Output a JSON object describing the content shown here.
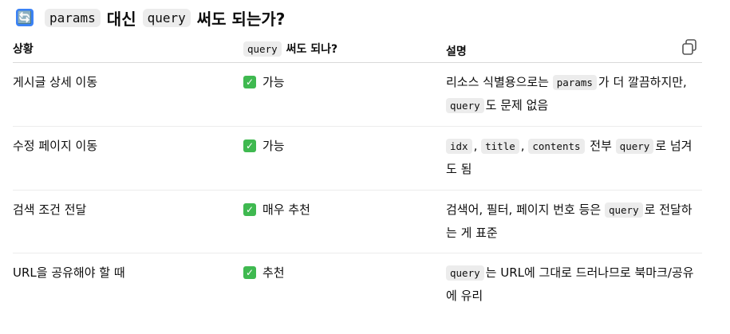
{
  "heading": {
    "emoji": "🔄",
    "code1": "params",
    "text1": "대신",
    "code2": "query",
    "text2": "써도 되는가?"
  },
  "table": {
    "headers": {
      "situation": "상황",
      "usable_code": "query",
      "usable_text": "써도 되나?",
      "description": "설명"
    },
    "rows": [
      {
        "situation": "게시글 상세 이동",
        "usable": "가능",
        "description": [
          {
            "t": "리소스 식별용으로는 "
          },
          {
            "c": "params"
          },
          {
            "t": "가 더 깔끔하지만, "
          },
          {
            "c": "query"
          },
          {
            "t": "도 문제 없음"
          }
        ]
      },
      {
        "situation": "수정 페이지 이동",
        "usable": "가능",
        "description": [
          {
            "c": "idx"
          },
          {
            "t": ", "
          },
          {
            "c": "title"
          },
          {
            "t": ", "
          },
          {
            "c": "contents"
          },
          {
            "t": " 전부 "
          },
          {
            "c": "query"
          },
          {
            "t": "로 넘겨도 됨"
          }
        ]
      },
      {
        "situation": "검색 조건 전달",
        "usable": "매우 추천",
        "description": [
          {
            "t": "검색어, 필터, 페이지 번호 등은 "
          },
          {
            "c": "query"
          },
          {
            "t": "로 전달하는 게 표준"
          }
        ]
      },
      {
        "situation": "URL을 공유해야 할 때",
        "usable": "추천",
        "description": [
          {
            "c": "query"
          },
          {
            "t": "는 URL에 그대로 드러나므로 북마크/공유에 유리"
          }
        ]
      }
    ]
  },
  "icons": {
    "copy": "copy-icon",
    "check": "check-mark-icon",
    "heading": "arrows-cycle-icon"
  },
  "colors": {
    "check": "#3fb950",
    "heading_emoji": "#3b82f6",
    "code_bg": "#ececec"
  }
}
